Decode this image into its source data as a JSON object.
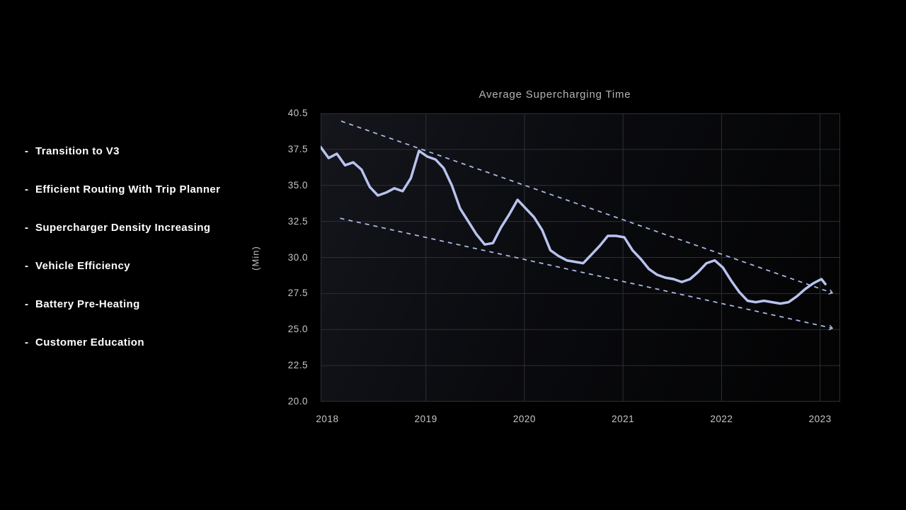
{
  "slide": {
    "bullet_marker": "-",
    "bullets": [
      {
        "label": "Transition to V3"
      },
      {
        "label": "Efficient Routing With Trip Planner"
      },
      {
        "label": "Supercharger Density Increasing"
      },
      {
        "label": "Vehicle Efficiency"
      },
      {
        "label": "Battery Pre-Heating"
      },
      {
        "label": "Customer Education"
      }
    ]
  },
  "chart_data": {
    "type": "line",
    "title": "Average Supercharging Time",
    "ylabel": "(Min)",
    "grid": true,
    "legend": false,
    "ylim": [
      20.0,
      40.5
    ],
    "y_ticks": [
      40.5,
      37.5,
      35.0,
      32.5,
      30.0,
      27.5,
      25.0,
      22.5,
      20.0
    ],
    "y_tick_labels": [
      "40.5",
      "37.5",
      "35.0",
      "32.5",
      "30.0",
      "27.5",
      "25.0",
      "22.5",
      "20.0"
    ],
    "x_ticks": [
      2018,
      2019,
      2020,
      2021,
      2022,
      2023
    ],
    "x_tick_labels": [
      "2018",
      "2019",
      "2020",
      "2021",
      "2022",
      "2023"
    ],
    "series": [
      {
        "name": "average-supercharging-time-min",
        "start_year": 2017.93,
        "step_years": 0.08333,
        "values": [
          37.7,
          36.9,
          37.2,
          36.4,
          36.6,
          36.1,
          34.9,
          34.3,
          34.5,
          34.8,
          34.6,
          35.5,
          37.4,
          37.0,
          36.8,
          36.2,
          35.0,
          33.4,
          32.5,
          31.6,
          30.9,
          31.0,
          32.1,
          33.0,
          34.0,
          33.4,
          32.8,
          31.9,
          30.5,
          30.1,
          29.8,
          29.7,
          29.6,
          30.2,
          30.8,
          31.5,
          31.5,
          31.4,
          30.5,
          29.9,
          29.2,
          28.8,
          28.6,
          28.5,
          28.3,
          28.5,
          29.0,
          29.6,
          29.8,
          29.3,
          28.4,
          27.6,
          27.0,
          26.9,
          27.0,
          26.9,
          26.8,
          26.9,
          27.3,
          27.8,
          28.2,
          28.5
        ],
        "tail": {
          "dx_years": 0.04,
          "value": 28.15
        }
      }
    ],
    "trend_lines": [
      {
        "name": "upper-envelope",
        "x1": 2018.14,
        "y1": 39.85,
        "x2": 2023.12,
        "y2": 27.55,
        "style": "dashed",
        "arrow": true
      },
      {
        "name": "lower-envelope",
        "x1": 2018.13,
        "y1": 32.72,
        "x2": 2023.12,
        "y2": 25.1,
        "style": "dashed",
        "arrow": true
      }
    ],
    "colors": {
      "background": "#000000",
      "line": "#b8c3ee",
      "dashed": "#a9b8e6",
      "grid": "#2e2f35",
      "axis_text": "#c6c6c6",
      "title_text": "#b4b4b4",
      "bullet_text": "#ffffff"
    }
  }
}
